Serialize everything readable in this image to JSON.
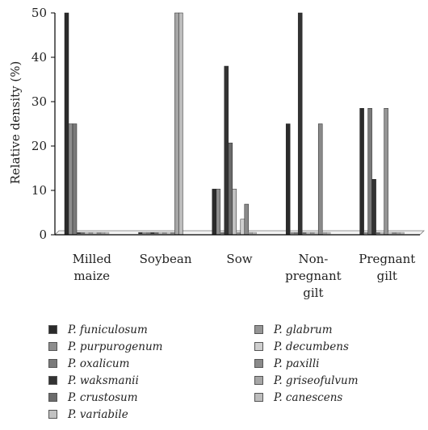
{
  "chart_data": {
    "type": "bar",
    "ylabel": "Relative density (%)",
    "xlabel": "",
    "ylim": [
      0,
      50
    ],
    "yticks": [
      0,
      10,
      20,
      30,
      40,
      50
    ],
    "grid": false,
    "legend_position": "bottom",
    "categories": [
      [
        "Milled",
        "maize"
      ],
      [
        "Soybean"
      ],
      [
        "Sow"
      ],
      [
        "Non-",
        "pregnant",
        "gilt"
      ],
      [
        "Pregnant",
        "gilt"
      ]
    ],
    "series": [
      {
        "name": "P. funiculosum",
        "color": "#2b2b2b",
        "values": [
          50,
          0,
          10.3,
          25,
          28.5
        ]
      },
      {
        "name": "P. purpurogenum",
        "color": "#8e8e8e",
        "values": [
          25,
          0,
          10.3,
          0,
          0
        ]
      },
      {
        "name": "P. oxalicum",
        "color": "#7a7a7a",
        "values": [
          25,
          0,
          0,
          0,
          28.5
        ]
      },
      {
        "name": "P. waksmanii",
        "color": "#333333",
        "values": [
          0,
          0,
          38,
          50,
          12.5
        ]
      },
      {
        "name": "P. crustosum",
        "color": "#6b6b6b",
        "values": [
          0,
          0,
          20.7,
          0,
          0
        ]
      },
      {
        "name": "P. variabile",
        "color": "#c2c2c2",
        "values": [
          0,
          0,
          10.3,
          0,
          0
        ]
      },
      {
        "name": "P. glabrum",
        "color": "#959595",
        "values": [
          0,
          0,
          0,
          0,
          28.5
        ]
      },
      {
        "name": "P. decumbens",
        "color": "#cfcfcf",
        "values": [
          0,
          0,
          3.5,
          0,
          0
        ]
      },
      {
        "name": "P. paxilli",
        "color": "#8a8a8a",
        "values": [
          0,
          0,
          6.9,
          25,
          0
        ]
      },
      {
        "name": "P. griseofulvum",
        "color": "#a6a6a6",
        "values": [
          0,
          50,
          0,
          0,
          0
        ]
      },
      {
        "name": "P. canescens",
        "color": "#bdbdbd",
        "values": [
          0,
          50,
          0,
          0,
          0
        ]
      }
    ]
  }
}
